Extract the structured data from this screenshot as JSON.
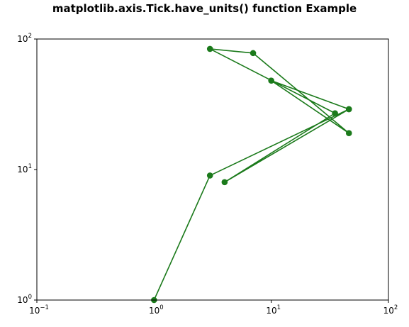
{
  "chart_data": {
    "type": "line",
    "title": "matplotlib.axis.Tick.have_units() function Example",
    "xlabel": "",
    "ylabel": "",
    "xscale": "log",
    "yscale": "log",
    "xlim": [
      0.1,
      100
    ],
    "ylim": [
      1,
      100
    ],
    "grid": false,
    "x_ticks": [
      {
        "value": 0.1,
        "base": "10",
        "exp": "−1"
      },
      {
        "value": 1,
        "base": "10",
        "exp": "0"
      },
      {
        "value": 10,
        "base": "10",
        "exp": "1"
      },
      {
        "value": 100,
        "base": "10",
        "exp": "2"
      }
    ],
    "y_ticks": [
      {
        "value": 1,
        "base": "10",
        "exp": "0"
      },
      {
        "value": 10,
        "base": "10",
        "exp": "1"
      },
      {
        "value": 100,
        "base": "10",
        "exp": "2"
      }
    ],
    "series": [
      {
        "color": "#1b7a1b",
        "marker": "circle",
        "x": [
          1,
          3,
          46,
          4,
          35,
          3,
          7,
          46,
          10,
          46
        ],
        "y": [
          1,
          9,
          29,
          8,
          27,
          84,
          78,
          19,
          48,
          29
        ]
      }
    ]
  }
}
